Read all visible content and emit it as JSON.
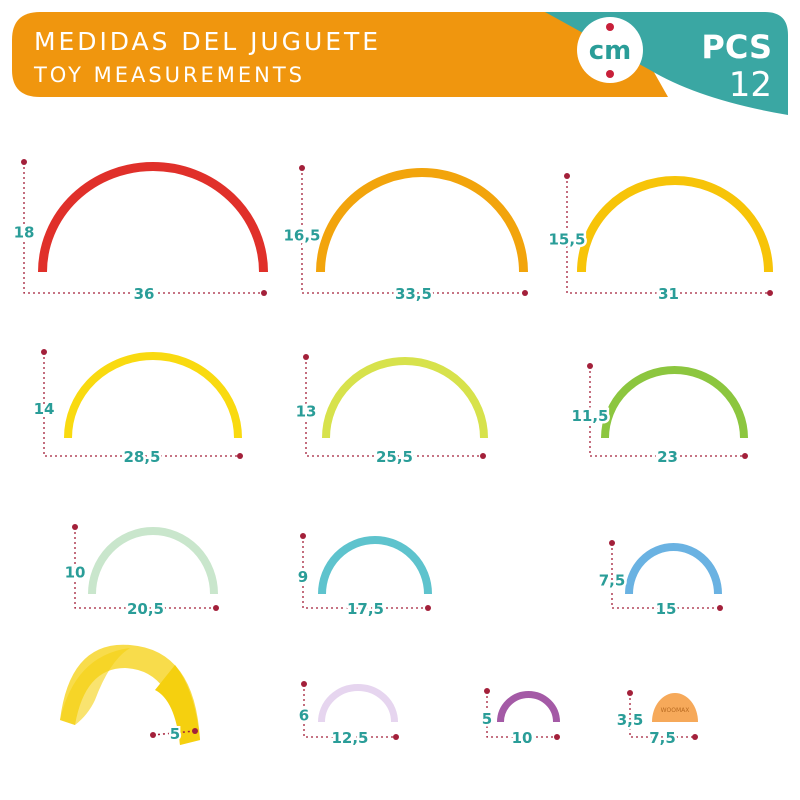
{
  "header": {
    "title_es": "MEDIDAS DEL JUGUETE",
    "title_en": "TOY MEASUREMENTS",
    "unit_badge": "cm",
    "pcs_label": "PCS",
    "pcs_count": "12",
    "banner_color": "#f0960e",
    "badge_color": "#3aa7a3"
  },
  "label_color": "#2a9d98",
  "dimension_line_color": "#a3203a",
  "pieces": [
    {
      "height": "18",
      "width": "36",
      "color": "#e0302a"
    },
    {
      "height": "16,5",
      "width": "33,5",
      "color": "#f2a40c"
    },
    {
      "height": "15,5",
      "width": "31",
      "color": "#f7c408"
    },
    {
      "height": "14",
      "width": "28,5",
      "color": "#f9da10"
    },
    {
      "height": "13",
      "width": "25,5",
      "color": "#d7e24c"
    },
    {
      "height": "11,5",
      "width": "23",
      "color": "#8cc63f"
    },
    {
      "height": "10",
      "width": "20,5",
      "color": "#c9e6cc"
    },
    {
      "height": "9",
      "width": "17,5",
      "color": "#5ec3cd"
    },
    {
      "height": "7,5",
      "width": "15",
      "color": "#6ab2e2"
    },
    {
      "height": "6",
      "width": "12,5",
      "color": "#e6d5ef"
    },
    {
      "height": "5",
      "width": "10",
      "color": "#a45aa6"
    },
    {
      "height": "3,5",
      "width": "7,5",
      "color": "#f6a95a",
      "logo": "WOOMAX"
    }
  ],
  "depth_piece": {
    "depth": "5",
    "color": "#f5d00f"
  }
}
